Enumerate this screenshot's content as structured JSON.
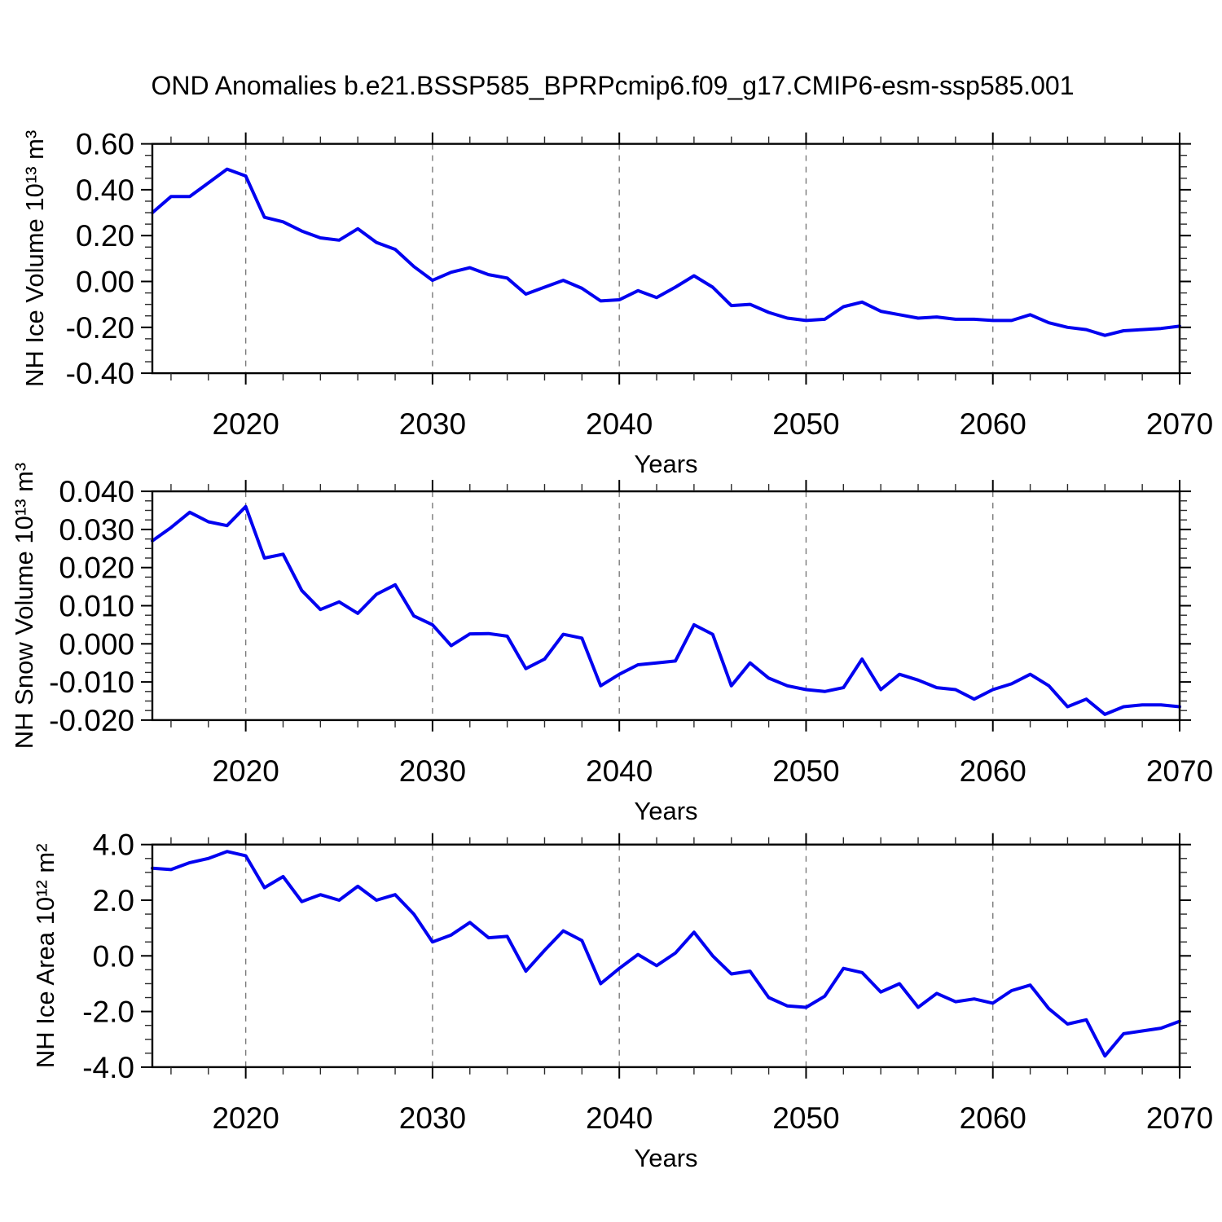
{
  "title": "OND Anomalies b.e21.BSSP585_BPRPcmip6.f09_g17.CMIP6-esm-ssp585.001",
  "colors": {
    "line": "#0202f0",
    "axis": "#000000",
    "grid": "#7a7a7a",
    "background": "#ffffff"
  },
  "x_axis": {
    "label": "Years",
    "range": [
      2015,
      2070
    ],
    "ticks": [
      2020,
      2030,
      2040,
      2050,
      2060,
      2070
    ],
    "tick_labels": [
      "2020",
      "2030",
      "2040",
      "2050",
      "2060",
      "2070"
    ],
    "gridlines": [
      2020,
      2030,
      2040,
      2050,
      2060
    ],
    "minor_step": 2
  },
  "years": [
    2015,
    2016,
    2017,
    2018,
    2019,
    2020,
    2021,
    2022,
    2023,
    2024,
    2025,
    2026,
    2027,
    2028,
    2029,
    2030,
    2031,
    2032,
    2033,
    2034,
    2035,
    2036,
    2037,
    2038,
    2039,
    2040,
    2041,
    2042,
    2043,
    2044,
    2045,
    2046,
    2047,
    2048,
    2049,
    2050,
    2051,
    2052,
    2053,
    2054,
    2055,
    2056,
    2057,
    2058,
    2059,
    2060,
    2061,
    2062,
    2063,
    2064,
    2065,
    2066,
    2067,
    2068,
    2069,
    2070
  ],
  "chart_data": [
    {
      "type": "line",
      "ylabel": "NH Ice Volume 10¹³ m³",
      "ylim": [
        -0.4,
        0.6
      ],
      "ytick_values": [
        0.6,
        0.4,
        0.2,
        0.0,
        -0.2,
        -0.4
      ],
      "ytick_labels": [
        "0.60",
        "0.40",
        "0.20",
        "0.00",
        "-0.20",
        "-0.40"
      ],
      "yminor_step": 0.05,
      "values": [
        0.3,
        0.37,
        0.37,
        0.43,
        0.49,
        0.46,
        0.28,
        0.26,
        0.22,
        0.19,
        0.18,
        0.23,
        0.17,
        0.14,
        0.065,
        0.005,
        0.04,
        0.06,
        0.03,
        0.015,
        -0.055,
        -0.025,
        0.005,
        -0.03,
        -0.085,
        -0.08,
        -0.04,
        -0.07,
        -0.025,
        0.025,
        -0.025,
        -0.105,
        -0.1,
        -0.135,
        -0.16,
        -0.17,
        -0.165,
        -0.11,
        -0.09,
        -0.13,
        -0.145,
        -0.16,
        -0.155,
        -0.165,
        -0.165,
        -0.17,
        -0.17,
        -0.145,
        -0.18,
        -0.2,
        -0.21,
        -0.235,
        -0.215,
        -0.21,
        -0.205,
        -0.195
      ]
    },
    {
      "type": "line",
      "ylabel": "NH Snow Volume 10¹³ m³",
      "ylim": [
        -0.02,
        0.04
      ],
      "ytick_values": [
        0.04,
        0.03,
        0.02,
        0.01,
        0.0,
        -0.01,
        -0.02
      ],
      "ytick_labels": [
        "0.040",
        "0.030",
        "0.020",
        "0.010",
        "0.000",
        "-0.010",
        "-0.020"
      ],
      "yminor_step": 0.0025,
      "values": [
        0.027,
        0.0305,
        0.0345,
        0.032,
        0.031,
        0.036,
        0.0225,
        0.0235,
        0.014,
        0.009,
        0.011,
        0.008,
        0.013,
        0.0155,
        0.0073,
        0.005,
        -0.0005,
        0.0026,
        0.0027,
        0.002,
        -0.0065,
        -0.004,
        0.0025,
        0.0015,
        -0.011,
        -0.008,
        -0.0055,
        -0.005,
        -0.0045,
        0.005,
        0.0025,
        -0.011,
        -0.005,
        -0.009,
        -0.011,
        -0.012,
        -0.0125,
        -0.0115,
        -0.004,
        -0.012,
        -0.008,
        -0.0095,
        -0.0115,
        -0.012,
        -0.0145,
        -0.012,
        -0.0105,
        -0.008,
        -0.011,
        -0.0165,
        -0.0145,
        -0.0185,
        -0.0165,
        -0.016,
        -0.016,
        -0.0165
      ]
    },
    {
      "type": "line",
      "ylabel": "NH Ice Area 10¹² m²",
      "ylim": [
        -4.0,
        4.0
      ],
      "ytick_values": [
        4.0,
        2.0,
        0.0,
        -2.0,
        -4.0
      ],
      "ytick_labels": [
        "4.0",
        "2.0",
        "0.0",
        "-2.0",
        "-4.0"
      ],
      "yminor_step": 0.5,
      "values": [
        3.15,
        3.1,
        3.35,
        3.5,
        3.75,
        3.6,
        2.45,
        2.85,
        1.95,
        2.2,
        2.0,
        2.5,
        2.0,
        2.2,
        1.5,
        0.5,
        0.75,
        1.2,
        0.65,
        0.7,
        -0.55,
        0.2,
        0.9,
        0.55,
        -1.0,
        -0.45,
        0.05,
        -0.35,
        0.1,
        0.85,
        0.0,
        -0.65,
        -0.55,
        -1.5,
        -1.8,
        -1.85,
        -1.45,
        -0.45,
        -0.6,
        -1.3,
        -1.0,
        -1.85,
        -1.35,
        -1.65,
        -1.55,
        -1.7,
        -1.25,
        -1.05,
        -1.9,
        -2.45,
        -2.3,
        -3.6,
        -2.8,
        -2.7,
        -2.6,
        -2.35
      ]
    }
  ]
}
